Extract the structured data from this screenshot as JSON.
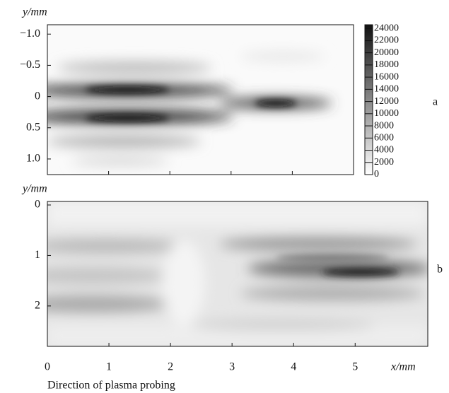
{
  "chart_data": [
    {
      "type": "heatmap",
      "panel_label": "a",
      "y_label": "y/mm",
      "ylim": [
        -1.15,
        1.25
      ],
      "yticks": [
        {
          "value": -1,
          "label": "−1.0"
        },
        {
          "value": -0.5,
          "label": "−0.5"
        },
        0,
        0.5,
        {
          "value": 1,
          "label": "1.0"
        }
      ],
      "xlim": [
        0,
        5
      ],
      "xticks": [
        1,
        2,
        3,
        4
      ],
      "colorbar": {
        "lim": [
          0,
          24600
        ],
        "ticks": [
          0,
          2000,
          4000,
          6000,
          8000,
          10000,
          12000,
          14000,
          16000,
          18000,
          20000,
          22000,
          24000
        ]
      }
    },
    {
      "type": "heatmap",
      "panel_label": "b",
      "y_label": "y/mm",
      "x_label": "x/mm",
      "caption": "Direction of plasma probing",
      "ylim": [
        -0.07,
        2.8
      ],
      "yticks": [
        0,
        1,
        2
      ],
      "xlim": [
        0,
        6.18
      ],
      "xticks": [
        0,
        1,
        2,
        3,
        4,
        5
      ]
    }
  ]
}
